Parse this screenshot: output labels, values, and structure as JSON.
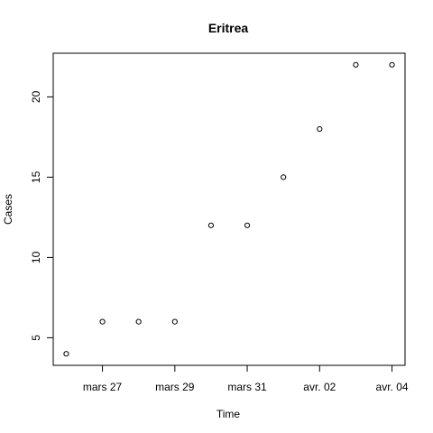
{
  "chart_data": {
    "type": "scatter",
    "title": "Eritrea",
    "xlabel": "Time",
    "ylabel": "Cases",
    "x": [
      "2020-03-26",
      "2020-03-27",
      "2020-03-28",
      "2020-03-29",
      "2020-03-30",
      "2020-03-31",
      "2020-04-01",
      "2020-04-02",
      "2020-04-03",
      "2020-04-04"
    ],
    "y": [
      4,
      6,
      6,
      6,
      12,
      12,
      15,
      18,
      22,
      22
    ],
    "x_ticks": [
      "mars 27",
      "mars 29",
      "mars 31",
      "avr. 02",
      "avr. 04"
    ],
    "x_tick_values": [
      "2020-03-27",
      "2020-03-29",
      "2020-03-31",
      "2020-04-02",
      "2020-04-04"
    ],
    "y_ticks": [
      5,
      10,
      15,
      20
    ],
    "xlim": [
      "2020-03-26",
      "2020-04-04"
    ],
    "ylim": [
      4,
      22
    ],
    "grid": false,
    "marker": "open-circle"
  }
}
